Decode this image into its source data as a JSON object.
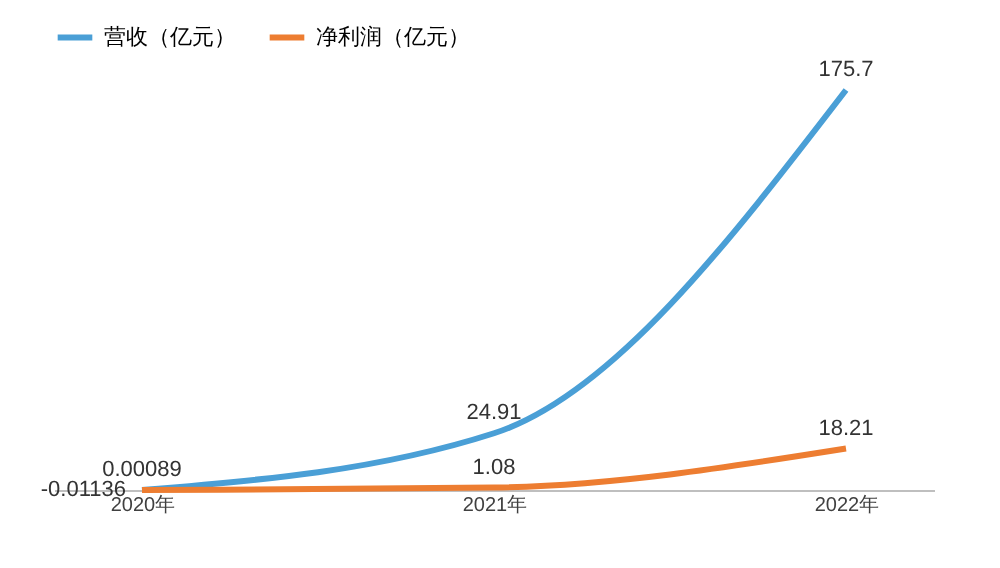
{
  "chart_data": {
    "type": "line",
    "categories": [
      "2020年",
      "2021年",
      "2022年"
    ],
    "series": [
      {
        "name": "营收（亿元）",
        "color": "#4a9fd6",
        "values": [
          0.00089,
          24.91,
          175.7
        ]
      },
      {
        "name": "净利润（亿元）",
        "color": "#ed7d31",
        "values": [
          -0.01136,
          1.08,
          18.21
        ]
      }
    ],
    "data_labels": true,
    "legend": "top",
    "grid": false,
    "marker": "none",
    "line_style": "solid"
  }
}
